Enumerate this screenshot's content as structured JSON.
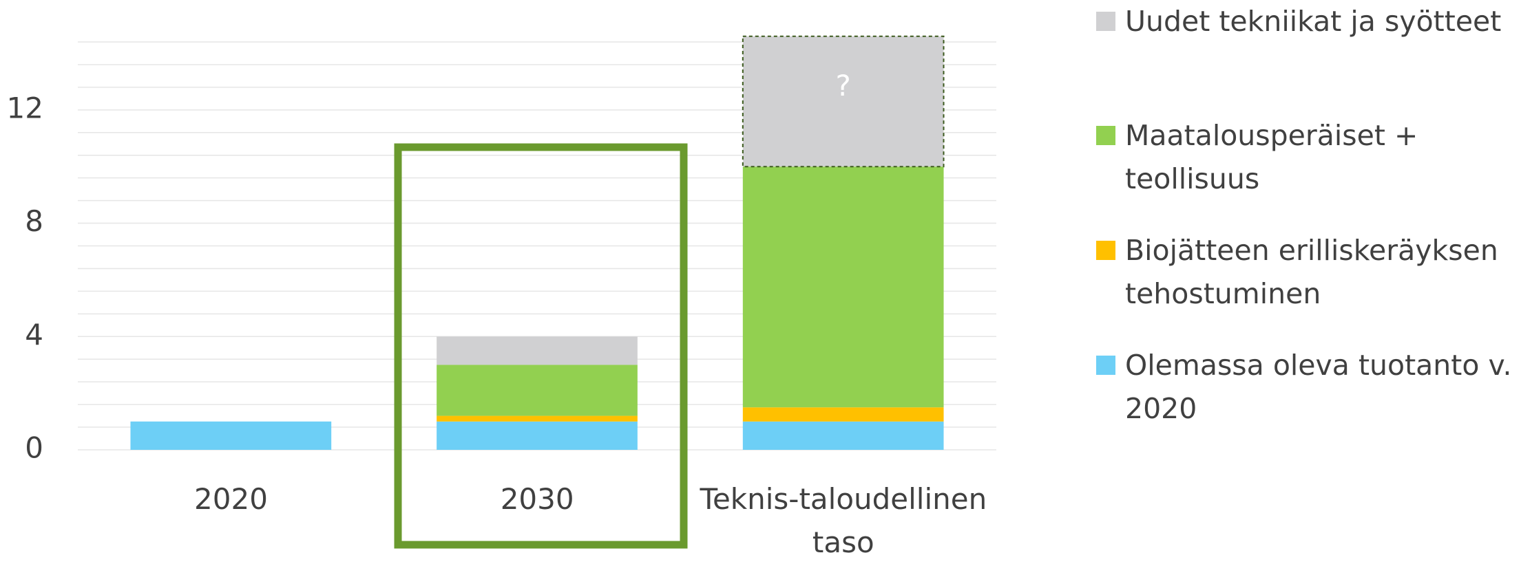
{
  "chart_data": {
    "type": "stacked_bar",
    "categories": [
      "2020",
      "2030",
      "Teknis-taloudellinen taso"
    ],
    "series": [
      {
        "name": "Olemassa oleva tuotanto v. 2020",
        "color": "#6dcff6",
        "values": [
          1,
          1,
          1
        ]
      },
      {
        "name": "Biojätteen erilliskeräyksen tehostuminen",
        "color": "#ffc000",
        "values": [
          0,
          0.2,
          0.5
        ]
      },
      {
        "name": "Maatalousperäiset + teollisuus",
        "color": "#92d050",
        "values": [
          0,
          1.8,
          8.5
        ]
      },
      {
        "name": "Uudet tekniikat ja syötteet",
        "color": "#d0d0d2",
        "values": [
          0,
          1,
          4.6
        ]
      }
    ],
    "annotation": "?",
    "ylim": [
      0,
      14.4
    ],
    "yticks": [
      0,
      4,
      8,
      12
    ],
    "grid_lines": [
      0,
      0.8,
      1.6,
      2.4,
      3.2,
      4,
      4.8,
      5.6,
      6.4,
      7.2,
      8,
      8.8,
      9.6,
      10.4,
      11.2,
      12,
      12.8,
      13.6,
      14.4
    ],
    "grid": true,
    "legend": "right"
  }
}
